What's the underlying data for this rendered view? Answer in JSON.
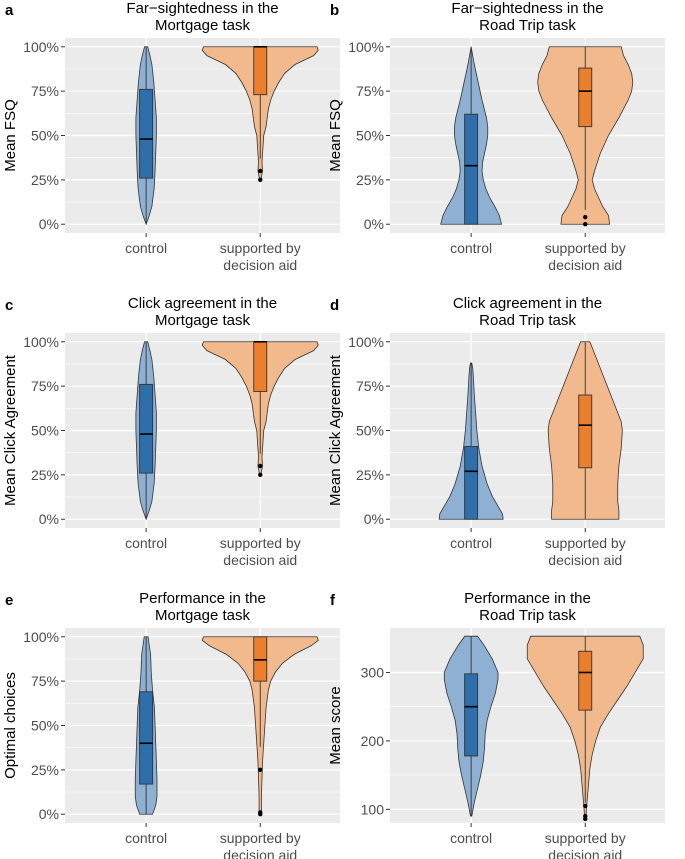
{
  "colors": {
    "panel_bg": "#ebebeb",
    "grid": "#ffffff",
    "control_violin": "#8eb0d2",
    "control_box": "#2e6eab",
    "aid_violin": "#f2b98c",
    "aid_box": "#ec7f2e",
    "outline": "#333333"
  },
  "chart_data": [
    {
      "panel": "a",
      "type": "violin",
      "title": [
        "Far−sightedness in the",
        "Mortgage task"
      ],
      "ylabel": "Mean FSQ",
      "ylim": [
        0,
        100
      ],
      "yticks": [
        0,
        25,
        50,
        75,
        100
      ],
      "ytick_labels": [
        "0%",
        "25%",
        "50%",
        "75%",
        "100%"
      ],
      "categories": [
        [
          "control"
        ],
        [
          "supported by",
          "decision aid"
        ]
      ],
      "groups": [
        {
          "name": "control",
          "density": [
            [
              0,
              0.0
            ],
            [
              5,
              0.1
            ],
            [
              10,
              0.18
            ],
            [
              20,
              0.25
            ],
            [
              30,
              0.28
            ],
            [
              40,
              0.3
            ],
            [
              50,
              0.32
            ],
            [
              60,
              0.32
            ],
            [
              70,
              0.28
            ],
            [
              80,
              0.24
            ],
            [
              90,
              0.18
            ],
            [
              95,
              0.12
            ],
            [
              100,
              0.05
            ]
          ],
          "whisker": [
            0,
            100
          ],
          "box": [
            26,
            76
          ],
          "median": 48,
          "outliers": []
        },
        {
          "name": "supported by decision aid",
          "density": [
            [
              25,
              0.01
            ],
            [
              30,
              0.04
            ],
            [
              35,
              0.03
            ],
            [
              40,
              0.04
            ],
            [
              50,
              0.06
            ],
            [
              55,
              0.1
            ],
            [
              60,
              0.12
            ],
            [
              65,
              0.14
            ],
            [
              70,
              0.18
            ],
            [
              75,
              0.24
            ],
            [
              80,
              0.32
            ],
            [
              85,
              0.42
            ],
            [
              90,
              0.6
            ],
            [
              95,
              0.92
            ],
            [
              98,
              1.0
            ],
            [
              100,
              0.98
            ]
          ],
          "whisker": [
            37,
            100
          ],
          "box": [
            73,
            100
          ],
          "median": 100,
          "outliers": [
            25,
            30
          ]
        }
      ]
    },
    {
      "panel": "b",
      "type": "violin",
      "title": [
        "Far−sightedness in the",
        "Road Trip task"
      ],
      "ylabel": "Mean FSQ",
      "ylim": [
        0,
        100
      ],
      "yticks": [
        0,
        25,
        50,
        75,
        100
      ],
      "ytick_labels": [
        "0%",
        "25%",
        "50%",
        "75%",
        "100%"
      ],
      "categories": [
        [
          "control"
        ],
        [
          "supported by",
          "decision aid"
        ]
      ],
      "groups": [
        {
          "name": "control",
          "density": [
            [
              0,
              0.95
            ],
            [
              5,
              0.88
            ],
            [
              10,
              0.74
            ],
            [
              15,
              0.58
            ],
            [
              20,
              0.46
            ],
            [
              25,
              0.38
            ],
            [
              30,
              0.34
            ],
            [
              35,
              0.36
            ],
            [
              40,
              0.42
            ],
            [
              45,
              0.48
            ],
            [
              50,
              0.52
            ],
            [
              55,
              0.52
            ],
            [
              60,
              0.48
            ],
            [
              70,
              0.34
            ],
            [
              80,
              0.22
            ],
            [
              90,
              0.1
            ],
            [
              95,
              0.05
            ],
            [
              100,
              0.0
            ]
          ],
          "whisker": [
            0,
            100
          ],
          "box": [
            0,
            62
          ],
          "median": 33,
          "outliers": []
        },
        {
          "name": "supported by decision aid",
          "density": [
            [
              0,
              0.42
            ],
            [
              5,
              0.4
            ],
            [
              10,
              0.3
            ],
            [
              20,
              0.16
            ],
            [
              25,
              0.12
            ],
            [
              30,
              0.16
            ],
            [
              40,
              0.26
            ],
            [
              50,
              0.4
            ],
            [
              60,
              0.58
            ],
            [
              70,
              0.74
            ],
            [
              75,
              0.8
            ],
            [
              80,
              0.82
            ],
            [
              85,
              0.8
            ],
            [
              90,
              0.74
            ],
            [
              95,
              0.66
            ],
            [
              100,
              0.62
            ]
          ],
          "whisker": [
            8,
            100
          ],
          "box": [
            55,
            88
          ],
          "median": 75,
          "outliers": [
            0,
            4
          ]
        }
      ]
    },
    {
      "panel": "c",
      "type": "violin",
      "title": [
        "Click agreement in the",
        "Mortgage task"
      ],
      "ylabel": "Mean Click Agreement",
      "ylim": [
        0,
        100
      ],
      "yticks": [
        0,
        25,
        50,
        75,
        100
      ],
      "ytick_labels": [
        "0%",
        "25%",
        "50%",
        "75%",
        "100%"
      ],
      "categories": [
        [
          "control"
        ],
        [
          "supported by",
          "decision aid"
        ]
      ],
      "groups": [
        {
          "name": "control",
          "density": [
            [
              0,
              0.0
            ],
            [
              5,
              0.1
            ],
            [
              10,
              0.18
            ],
            [
              20,
              0.25
            ],
            [
              30,
              0.28
            ],
            [
              40,
              0.3
            ],
            [
              50,
              0.32
            ],
            [
              60,
              0.32
            ],
            [
              70,
              0.28
            ],
            [
              80,
              0.24
            ],
            [
              90,
              0.18
            ],
            [
              95,
              0.12
            ],
            [
              100,
              0.05
            ]
          ],
          "whisker": [
            0,
            100
          ],
          "box": [
            26,
            76
          ],
          "median": 48,
          "outliers": []
        },
        {
          "name": "supported by decision aid",
          "density": [
            [
              25,
              0.01
            ],
            [
              30,
              0.04
            ],
            [
              35,
              0.03
            ],
            [
              40,
              0.04
            ],
            [
              50,
              0.06
            ],
            [
              55,
              0.1
            ],
            [
              60,
              0.12
            ],
            [
              65,
              0.14
            ],
            [
              70,
              0.18
            ],
            [
              75,
              0.24
            ],
            [
              80,
              0.32
            ],
            [
              85,
              0.42
            ],
            [
              90,
              0.6
            ],
            [
              95,
              0.92
            ],
            [
              98,
              1.0
            ],
            [
              100,
              0.98
            ]
          ],
          "whisker": [
            37,
            100
          ],
          "box": [
            72,
            100
          ],
          "median": 100,
          "outliers": [
            25,
            30
          ]
        }
      ]
    },
    {
      "panel": "d",
      "type": "violin",
      "title": [
        "Click agreement in the",
        "Road Trip task"
      ],
      "ylabel": "Mean Click Agreement",
      "ylim": [
        0,
        100
      ],
      "yticks": [
        0,
        25,
        50,
        75,
        100
      ],
      "ytick_labels": [
        "0%",
        "25%",
        "50%",
        "75%",
        "100%"
      ],
      "categories": [
        [
          "control"
        ],
        [
          "supported by",
          "decision aid"
        ]
      ],
      "groups": [
        {
          "name": "control",
          "density": [
            [
              0,
              1.0
            ],
            [
              3,
              0.98
            ],
            [
              8,
              0.82
            ],
            [
              13,
              0.66
            ],
            [
              20,
              0.5
            ],
            [
              30,
              0.34
            ],
            [
              40,
              0.24
            ],
            [
              50,
              0.18
            ],
            [
              60,
              0.14
            ],
            [
              70,
              0.1
            ],
            [
              80,
              0.07
            ],
            [
              85,
              0.05
            ],
            [
              88,
              0.02
            ]
          ],
          "whisker": [
            0,
            88
          ],
          "box": [
            0,
            41
          ],
          "median": 27,
          "outliers": []
        },
        {
          "name": "supported by decision aid",
          "density": [
            [
              0,
              0.58
            ],
            [
              5,
              0.58
            ],
            [
              10,
              0.56
            ],
            [
              20,
              0.56
            ],
            [
              30,
              0.58
            ],
            [
              40,
              0.62
            ],
            [
              50,
              0.64
            ],
            [
              55,
              0.62
            ],
            [
              60,
              0.56
            ],
            [
              70,
              0.44
            ],
            [
              80,
              0.32
            ],
            [
              90,
              0.2
            ],
            [
              95,
              0.14
            ],
            [
              100,
              0.08
            ]
          ],
          "whisker": [
            0,
            100
          ],
          "box": [
            29,
            70
          ],
          "median": 53,
          "outliers": []
        }
      ]
    },
    {
      "panel": "e",
      "type": "violin",
      "title": [
        "Performance in the",
        "Mortgage task"
      ],
      "ylabel": "Optimal choices",
      "ylim": [
        0,
        100
      ],
      "yticks": [
        0,
        25,
        50,
        75,
        100
      ],
      "ytick_labels": [
        "0%",
        "25%",
        "50%",
        "75%",
        "100%"
      ],
      "categories": [
        [
          "control"
        ],
        [
          "supported by",
          "decision aid"
        ]
      ],
      "groups": [
        {
          "name": "control",
          "density": [
            [
              0,
              0.2
            ],
            [
              5,
              0.3
            ],
            [
              10,
              0.34
            ],
            [
              20,
              0.34
            ],
            [
              30,
              0.32
            ],
            [
              40,
              0.3
            ],
            [
              50,
              0.28
            ],
            [
              60,
              0.26
            ],
            [
              70,
              0.2
            ],
            [
              80,
              0.16
            ],
            [
              90,
              0.14
            ],
            [
              95,
              0.1
            ],
            [
              100,
              0.06
            ]
          ],
          "whisker": [
            0,
            100
          ],
          "box": [
            17,
            69
          ],
          "median": 40,
          "outliers": []
        },
        {
          "name": "supported by decision aid",
          "density": [
            [
              0,
              0.02
            ],
            [
              10,
              0.02
            ],
            [
              20,
              0.03
            ],
            [
              30,
              0.04
            ],
            [
              40,
              0.06
            ],
            [
              50,
              0.08
            ],
            [
              60,
              0.1
            ],
            [
              70,
              0.14
            ],
            [
              75,
              0.18
            ],
            [
              80,
              0.26
            ],
            [
              85,
              0.38
            ],
            [
              90,
              0.58
            ],
            [
              95,
              0.88
            ],
            [
              98,
              1.0
            ],
            [
              100,
              0.98
            ]
          ],
          "whisker": [
            38,
            100
          ],
          "box": [
            75,
            100
          ],
          "median": 87,
          "outliers": [
            0,
            1,
            25
          ]
        }
      ]
    },
    {
      "panel": "f",
      "type": "violin",
      "title": [
        "Performance in the",
        "Road Trip task"
      ],
      "ylabel": "Mean score",
      "ylim": [
        80,
        365
      ],
      "yticks": [
        100,
        200,
        300
      ],
      "ytick_labels": [
        "100",
        "200",
        "300"
      ],
      "categories": [
        [
          "control"
        ],
        [
          "supported by",
          "decision aid"
        ]
      ],
      "groups": [
        {
          "name": "control",
          "density": [
            [
              90,
              0.02
            ],
            [
              110,
              0.1
            ],
            [
              130,
              0.2
            ],
            [
              150,
              0.3
            ],
            [
              170,
              0.38
            ],
            [
              190,
              0.42
            ],
            [
              210,
              0.44
            ],
            [
              230,
              0.5
            ],
            [
              250,
              0.62
            ],
            [
              270,
              0.76
            ],
            [
              290,
              0.84
            ],
            [
              300,
              0.84
            ],
            [
              320,
              0.66
            ],
            [
              340,
              0.4
            ],
            [
              353,
              0.2
            ]
          ],
          "whisker": [
            90,
            353
          ],
          "box": [
            178,
            298
          ],
          "median": 250,
          "outliers": []
        },
        {
          "name": "supported by decision aid",
          "density": [
            [
              85,
              0.01
            ],
            [
              100,
              0.02
            ],
            [
              120,
              0.04
            ],
            [
              140,
              0.06
            ],
            [
              160,
              0.08
            ],
            [
              180,
              0.12
            ],
            [
              200,
              0.18
            ],
            [
              220,
              0.26
            ],
            [
              240,
              0.4
            ],
            [
              260,
              0.56
            ],
            [
              280,
              0.72
            ],
            [
              300,
              0.86
            ],
            [
              320,
              1.0
            ],
            [
              340,
              1.0
            ],
            [
              353,
              0.94
            ]
          ],
          "whisker": [
            110,
            353
          ],
          "box": [
            245,
            331
          ],
          "median": 300,
          "outliers": [
            86,
            90,
            105
          ]
        }
      ]
    }
  ]
}
